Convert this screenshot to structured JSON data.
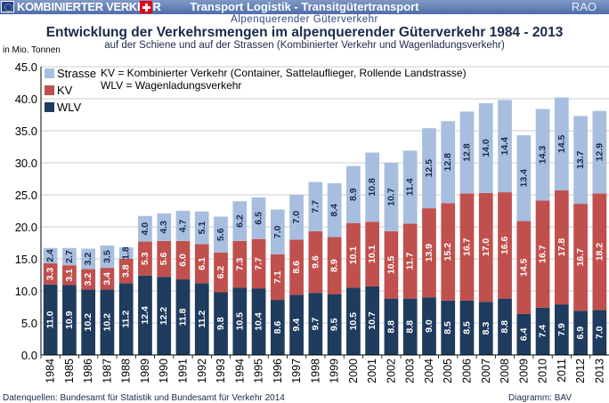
{
  "header": {
    "brand_label": "KOMBINIERTER VERKEHR",
    "title": "Transport Logistik - Transitgütertransport",
    "rao_label": "RAO",
    "subtitle_bar": "Alpenquerender Güterverkehr",
    "accent_color": "#5a77b0"
  },
  "chart_data": {
    "type": "bar",
    "stacked": true,
    "title": "Entwicklung der Verkehrsmengen im alpenquerender Güterverkehr 1984 - 2013",
    "subtitle": "auf der Schiene und auf der Strassen (Kombinierter Verkehr und Wagenladungsverkehr)",
    "ylabel": "in Mio. Tonnen",
    "ylim": [
      0,
      45
    ],
    "yticks": [
      "0.0",
      "5.0",
      "10.0",
      "15.0",
      "20.0",
      "25.0",
      "30.0",
      "35.0",
      "40.0",
      "45.0"
    ],
    "grid": true,
    "legend_position": "top-left",
    "categories": [
      "1984",
      "1985",
      "1986",
      "1987",
      "1988",
      "1989",
      "1990",
      "1991",
      "1992",
      "1993",
      "1994",
      "1995",
      "1996",
      "1997",
      "1998",
      "1999",
      "2000",
      "2001",
      "2002",
      "2003",
      "2004",
      "2005",
      "2006",
      "2007",
      "2008",
      "2009",
      "2010",
      "2011",
      "2012",
      "2013"
    ],
    "series": [
      {
        "name": "WLV",
        "color": "#1f3b5e",
        "values": [
          11.0,
          10.9,
          10.2,
          10.2,
          11.2,
          12.4,
          12.2,
          11.8,
          11.2,
          9.8,
          10.5,
          10.4,
          8.6,
          9.4,
          9.7,
          9.5,
          10.5,
          10.7,
          8.8,
          8.8,
          9.0,
          8.5,
          8.5,
          8.3,
          8.8,
          6.4,
          7.4,
          7.9,
          6.9,
          7.0
        ]
      },
      {
        "name": "KV",
        "color": "#c0504d",
        "values": [
          3.3,
          3.1,
          3.2,
          3.4,
          3.8,
          5.3,
          5.6,
          6.0,
          6.1,
          6.2,
          7.3,
          7.7,
          7.1,
          8.6,
          9.6,
          8.9,
          10.1,
          10.1,
          10.5,
          11.7,
          13.9,
          15.2,
          16.7,
          17.0,
          16.6,
          14.5,
          16.7,
          17.8,
          16.7,
          18.2
        ]
      },
      {
        "name": "Strasse",
        "color": "#a8bedf",
        "values": [
          2.4,
          2.7,
          3.2,
          3.5,
          1.8,
          4.0,
          4.3,
          4.7,
          5.1,
          5.6,
          6.2,
          6.5,
          7.0,
          7.0,
          7.7,
          8.4,
          8.9,
          10.8,
          10.7,
          11.4,
          12.5,
          12.8,
          12.8,
          14.0,
          14.4,
          13.4,
          14.3,
          14.5,
          13.7,
          12.9
        ]
      }
    ],
    "annotation_lines": [
      "KV = Kombinierter Verkehr (Container, Sattelauflieger, Rollende Landstrasse)",
      "WLV = Wagenladungsverkehr"
    ]
  },
  "footer": {
    "source": "Datenquellen: Bundesamt für Statistik und Bundesamt für Verkehr 2014",
    "credit": "Diagramm: BAV"
  }
}
